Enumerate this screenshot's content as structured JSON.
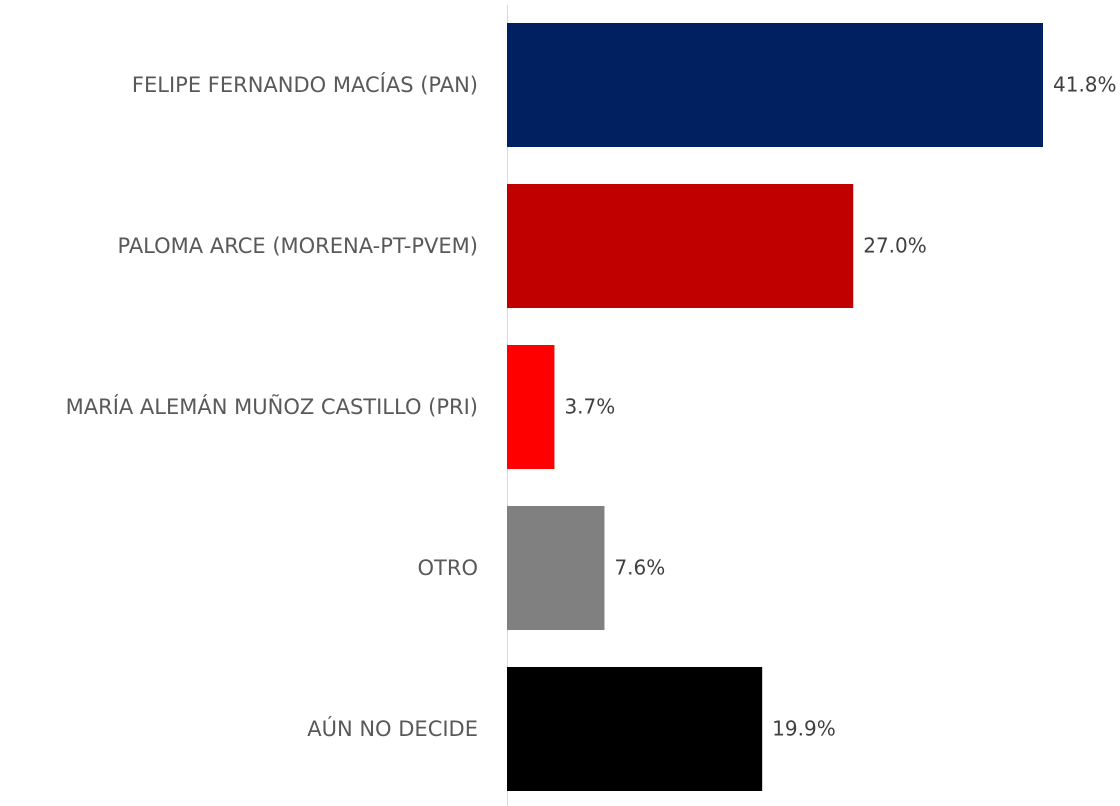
{
  "chart_data": {
    "type": "bar",
    "orientation": "horizontal",
    "categories": [
      "FELIPE FERNANDO MACÍAS (PAN)",
      "PALOMA ARCE (MORENA-PT-PVEM)",
      "MARÍA ALEMÁN MUÑOZ CASTILLO (PRI)",
      "OTRO",
      "AÚN NO DECIDE"
    ],
    "values": [
      41.8,
      27.0,
      3.7,
      7.6,
      19.9
    ],
    "value_labels": [
      "41.8%",
      "27.0%",
      "3.7%",
      "7.6%",
      "19.9%"
    ],
    "colors": [
      "#002060",
      "#c00000",
      "#ff0000",
      "#808080",
      "#000000"
    ]
  }
}
